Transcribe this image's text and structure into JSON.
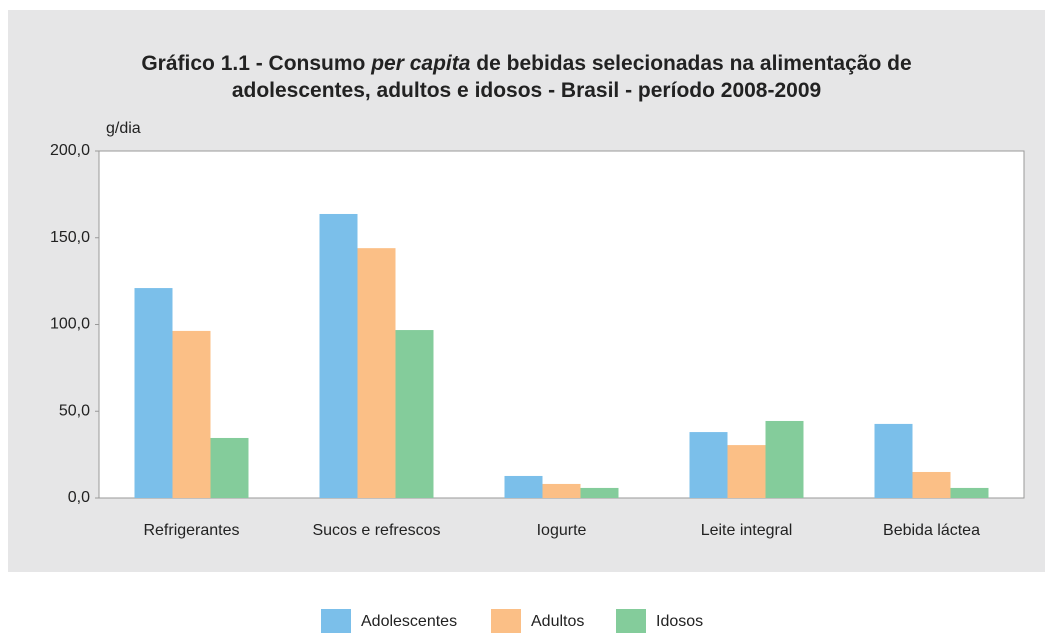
{
  "chart_data": {
    "type": "bar",
    "title": [
      "Gráfico 1.1 - Consumo",
      "per capita",
      "de bebidas selecionadas na alimentação de",
      "adolescentes, adultos e idosos - Brasil - período 2008-2009"
    ],
    "y_label": "g/dia",
    "categories": [
      "Refrigerantes",
      "Sucos e refrescos",
      "Iogurte",
      "Leite integral",
      "Bebida láctea"
    ],
    "series": [
      {
        "name": "Adolescentes",
        "color": "#7bbfea",
        "values": [
          121,
          163.7,
          12.7,
          38,
          42.7
        ]
      },
      {
        "name": "Adultos",
        "color": "#fbbf86",
        "values": [
          96.3,
          144,
          8.1,
          30.5,
          15
        ]
      },
      {
        "name": "Idosos",
        "color": "#84cc9b",
        "values": [
          34.6,
          96.8,
          5.8,
          44.4,
          5.8
        ]
      }
    ],
    "ylim": [
      0,
      200
    ],
    "yticks": [
      {
        "value": 0,
        "label": "0,0"
      },
      {
        "value": 50,
        "label": "50,0"
      },
      {
        "value": 100,
        "label": "100,0"
      },
      {
        "value": 150,
        "label": "150,0"
      },
      {
        "value": 200,
        "label": "200,0"
      }
    ],
    "grid": false,
    "legend": "bottom"
  }
}
